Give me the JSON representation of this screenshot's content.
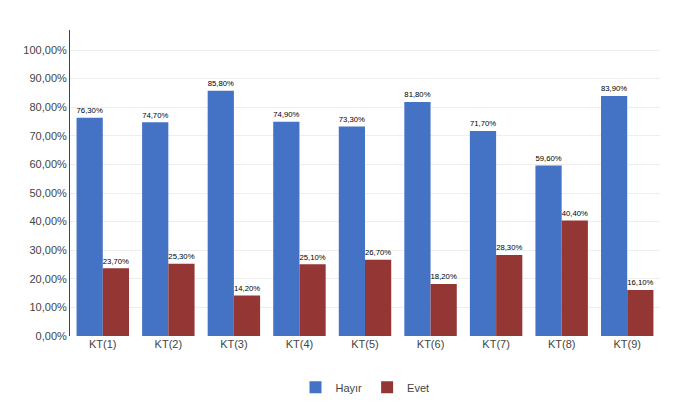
{
  "chart_data": {
    "type": "bar",
    "categories": [
      "KT(1)",
      "KT(2)",
      "KT(3)",
      "KT(4)",
      "KT(5)",
      "KT(6)",
      "KT(7)",
      "KT(8)",
      "KT(9)"
    ],
    "series": [
      {
        "name": "Hayır",
        "color": "#4472C4",
        "values": [
          76.3,
          74.7,
          85.8,
          74.9,
          73.3,
          81.8,
          71.7,
          59.6,
          83.9
        ],
        "value_labels": [
          "76,30%",
          "74,70%",
          "85,80%",
          "74,90%",
          "73,30%",
          "81,80%",
          "71,70%",
          "59,60%",
          "83,90%"
        ]
      },
      {
        "name": "Evet",
        "color": "#943634",
        "values": [
          23.7,
          25.3,
          14.2,
          25.1,
          26.7,
          18.2,
          28.3,
          40.4,
          16.1
        ],
        "value_labels": [
          "23,70%",
          "25,30%",
          "14,20%",
          "25,10%",
          "26,70%",
          "18,20%",
          "28,30%",
          "40,40%",
          "16,10%"
        ]
      }
    ],
    "ylim": [
      0,
      107
    ],
    "yticks": [
      {
        "value": 0,
        "label": "0,00%"
      },
      {
        "value": 10,
        "label": "10,00%"
      },
      {
        "value": 20,
        "label": "20,00%"
      },
      {
        "value": 30,
        "label": "30,00%"
      },
      {
        "value": 40,
        "label": "40,00%"
      },
      {
        "value": 50,
        "label": "50,00%"
      },
      {
        "value": 60,
        "label": "60,00%"
      },
      {
        "value": 70,
        "label": "70,00%"
      },
      {
        "value": 80,
        "label": "80,00%"
      },
      {
        "value": 90,
        "label": "90,00%"
      },
      {
        "value": 100,
        "label": "100,00%"
      }
    ],
    "grid": true,
    "legend": "bottom",
    "data_labels": true
  }
}
